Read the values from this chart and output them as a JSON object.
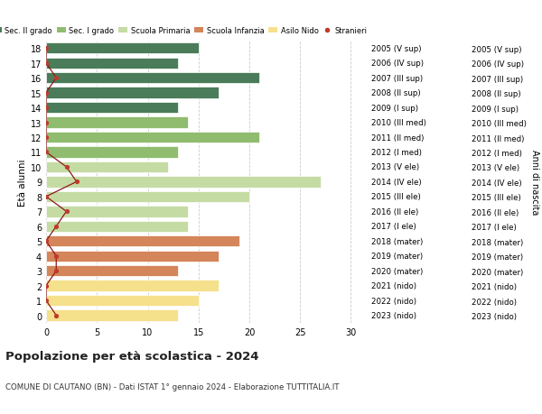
{
  "ages": [
    18,
    17,
    16,
    15,
    14,
    13,
    12,
    11,
    10,
    9,
    8,
    7,
    6,
    5,
    4,
    3,
    2,
    1,
    0
  ],
  "years": [
    "2005 (V sup)",
    "2006 (IV sup)",
    "2007 (III sup)",
    "2008 (II sup)",
    "2009 (I sup)",
    "2010 (III med)",
    "2011 (II med)",
    "2012 (I med)",
    "2013 (V ele)",
    "2014 (IV ele)",
    "2015 (III ele)",
    "2016 (II ele)",
    "2017 (I ele)",
    "2018 (mater)",
    "2019 (mater)",
    "2020 (mater)",
    "2021 (nido)",
    "2022 (nido)",
    "2023 (nido)"
  ],
  "values": [
    15,
    13,
    21,
    17,
    13,
    14,
    21,
    13,
    12,
    27,
    20,
    14,
    14,
    19,
    17,
    13,
    17,
    15,
    13
  ],
  "stranieri": [
    0,
    0,
    1,
    0,
    0,
    0,
    0,
    0,
    2,
    3,
    0,
    2,
    1,
    0,
    1,
    1,
    0,
    0,
    1
  ],
  "bar_colors": [
    "#4a7c59",
    "#4a7c59",
    "#4a7c59",
    "#4a7c59",
    "#4a7c59",
    "#8fbc6e",
    "#8fbc6e",
    "#8fbc6e",
    "#c5dba4",
    "#c5dba4",
    "#c5dba4",
    "#c5dba4",
    "#c5dba4",
    "#d4855a",
    "#d4855a",
    "#d4855a",
    "#f5e08c",
    "#f5e08c",
    "#f5e08c"
  ],
  "legend_colors": [
    "#4a7c59",
    "#8fbc6e",
    "#c5dba4",
    "#d4855a",
    "#f5e08c",
    "#c0392b"
  ],
  "legend_labels": [
    "Sec. II grado",
    "Sec. I grado",
    "Scuola Primaria",
    "Scuola Infanzia",
    "Asilo Nido",
    "Stranieri"
  ],
  "title": "Popolazione per età scolastica - 2024",
  "subtitle": "COMUNE DI CAUTANO (BN) - Dati ISTAT 1° gennaio 2024 - Elaborazione TUTTITALIA.IT",
  "ylabel": "Età alunni",
  "right_label": "Anni di nascita",
  "xlim": [
    0,
    32
  ],
  "background_color": "#ffffff",
  "grid_color": "#cccccc",
  "bar_height": 0.75
}
